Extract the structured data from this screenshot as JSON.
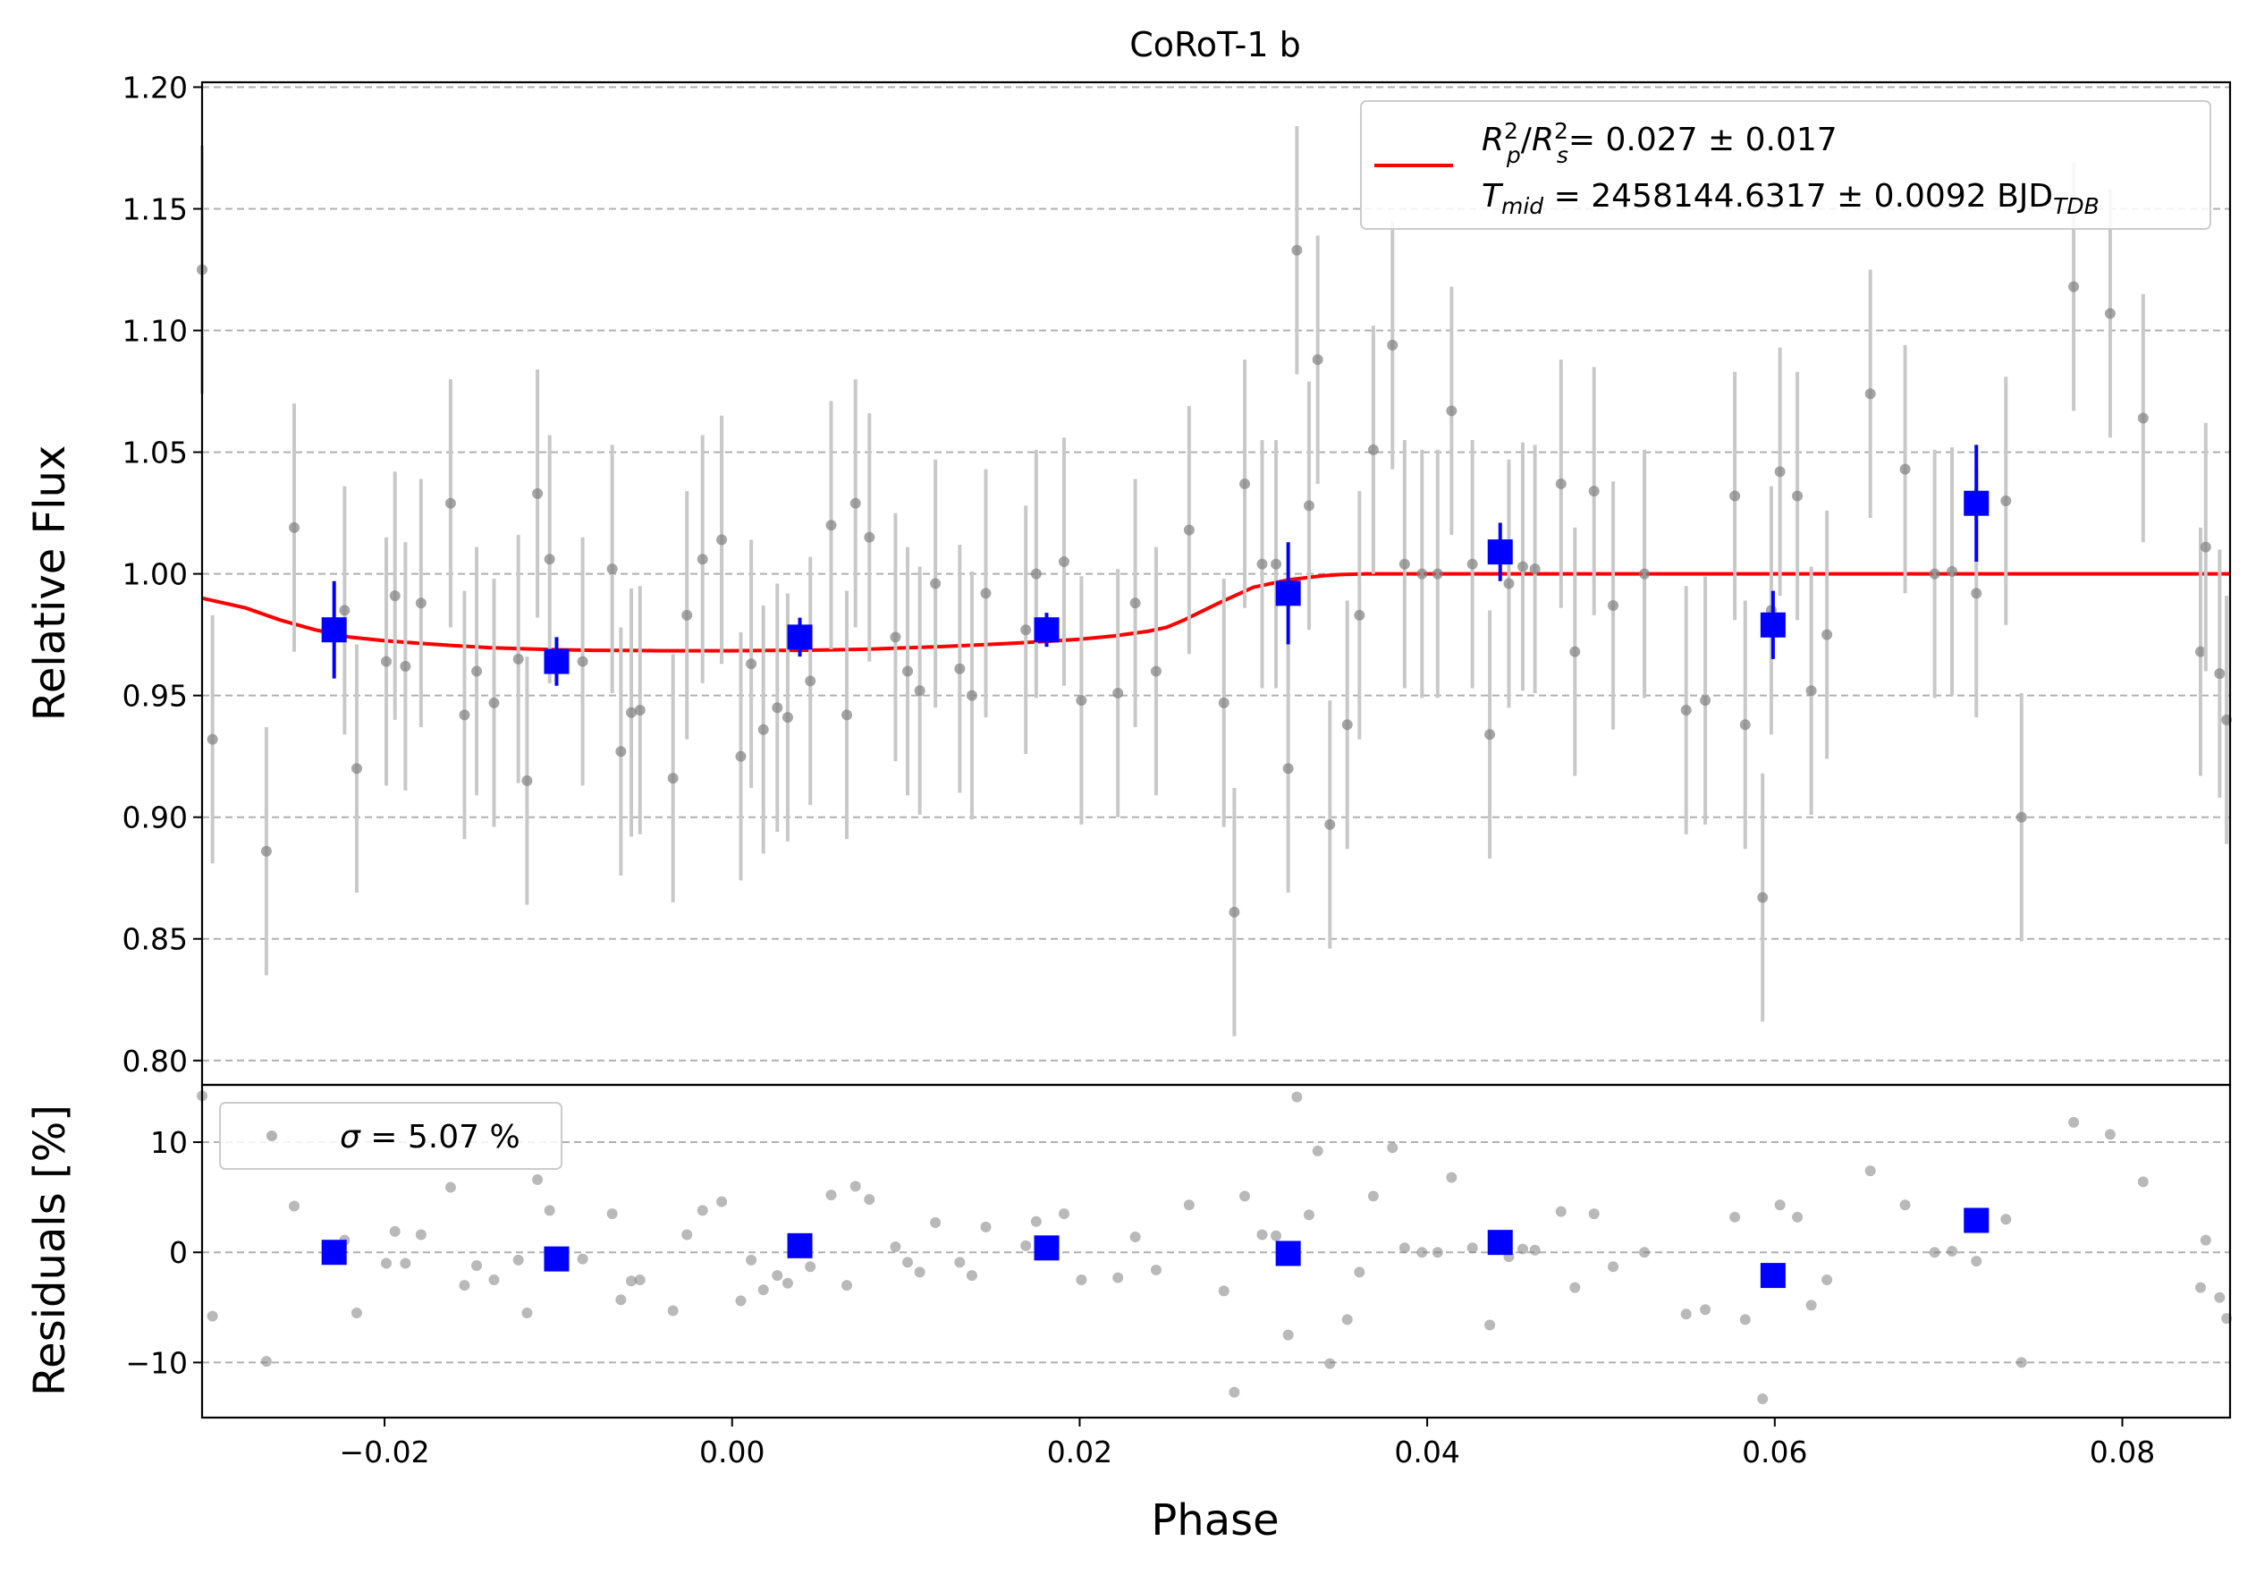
{
  "chart_data": {
    "type": "scatter",
    "title": "CoRoT-1 b",
    "xlabel": "Phase",
    "xlim": [
      -0.0305,
      0.0862
    ],
    "x_ticks": [
      -0.02,
      0.0,
      0.02,
      0.04,
      0.06,
      0.08
    ],
    "x_tick_labels": [
      "−0.02",
      "0.00",
      "0.02",
      "0.04",
      "0.06",
      "0.08"
    ],
    "colors": {
      "raw": "#808080",
      "raw_err": "#c8c8c8",
      "binned": "#0000ff",
      "model": "#ff0000",
      "grid": "#b0b0b0"
    },
    "top_panel": {
      "ylabel": "Relative Flux",
      "ylim": [
        0.79,
        1.202
      ],
      "y_ticks": [
        0.8,
        0.85,
        0.9,
        0.95,
        1.0,
        1.05,
        1.1,
        1.15,
        1.2
      ],
      "y_tick_labels": [
        "0.80",
        "0.85",
        "0.90",
        "0.95",
        "1.00",
        "1.05",
        "1.10",
        "1.15",
        "1.20"
      ],
      "grid": "horizontal dashed",
      "legend": {
        "placement": "upper right",
        "line1_base": "= 0.027 ± 0.017",
        "line2_base": "= 2458144.6317 ± 0.0092 BJD",
        "line2_sub": "TDB"
      },
      "raw_points": {
        "name": "raw",
        "error": 0.051,
        "x": [
          -0.0305,
          -0.0299,
          -0.0268,
          -0.0252,
          -0.0223,
          -0.0216,
          -0.0199,
          -0.0194,
          -0.0188,
          -0.0179,
          -0.0162,
          -0.0154,
          -0.0147,
          -0.0137,
          -0.0123,
          -0.0118,
          -0.0112,
          -0.0105,
          -0.0086,
          -0.0069,
          -0.0064,
          -0.0058,
          -0.0053,
          -0.0034,
          -0.0026,
          -0.0017,
          -0.0006,
          0.0005,
          0.0011,
          0.0018,
          0.0026,
          0.0032,
          0.0045,
          0.0057,
          0.0066,
          0.0071,
          0.0079,
          0.0094,
          0.0101,
          0.0108,
          0.0117,
          0.0131,
          0.0138,
          0.0146,
          0.0169,
          0.0175,
          0.0191,
          0.0201,
          0.0222,
          0.0232,
          0.0244,
          0.0263,
          0.0283,
          0.0289,
          0.0295,
          0.0305,
          0.0313,
          0.032,
          0.0325,
          0.0332,
          0.0337,
          0.0344,
          0.0354,
          0.0361,
          0.0369,
          0.038,
          0.0387,
          0.0397,
          0.0406,
          0.0414,
          0.0426,
          0.0436,
          0.0447,
          0.0455,
          0.0462,
          0.0477,
          0.0485,
          0.0496,
          0.0507,
          0.0525,
          0.0549,
          0.056,
          0.0577,
          0.0583,
          0.0593,
          0.0598,
          0.0603,
          0.0613,
          0.0621,
          0.063,
          0.0655,
          0.0675,
          0.0692,
          0.0702,
          0.0716,
          0.0733,
          0.0742,
          0.0772,
          0.0793,
          0.0812,
          0.0845,
          0.0848,
          0.0856,
          0.086
        ],
        "y": [
          1.125,
          0.932,
          0.886,
          1.019,
          0.985,
          0.92,
          0.964,
          0.991,
          0.962,
          0.988,
          1.029,
          0.942,
          0.96,
          0.947,
          0.965,
          0.915,
          1.033,
          1.006,
          0.964,
          1.002,
          0.927,
          0.943,
          0.944,
          0.916,
          0.983,
          1.006,
          1.014,
          0.925,
          0.963,
          0.936,
          0.945,
          0.941,
          0.956,
          1.02,
          0.942,
          1.029,
          1.015,
          0.974,
          0.96,
          0.952,
          0.996,
          0.961,
          0.95,
          0.992,
          0.977,
          1.0,
          1.005,
          0.948,
          0.951,
          0.988,
          0.96,
          1.018,
          0.947,
          0.861,
          1.037,
          1.004,
          1.004,
          0.92,
          1.133,
          1.028,
          1.088,
          0.897,
          0.938,
          0.983,
          1.051,
          1.094,
          1.004,
          1.0,
          1.0,
          1.067,
          1.004,
          0.934,
          0.996,
          1.003,
          1.002,
          1.037,
          0.968,
          1.034,
          0.987,
          1.0,
          0.944,
          0.948,
          1.032,
          0.938,
          0.867,
          0.985,
          1.042,
          1.032,
          0.952,
          0.975,
          1.074,
          1.043,
          1.0,
          1.001,
          0.992,
          1.03,
          0.9,
          1.118,
          1.107,
          1.064,
          0.968,
          1.011,
          0.959,
          0.94
        ]
      },
      "binned_points": {
        "name": "binned",
        "x": [
          -0.0229,
          -0.0101,
          0.0039,
          0.0181,
          0.032,
          0.0442,
          0.0599,
          0.0716
        ],
        "y": [
          0.977,
          0.964,
          0.974,
          0.977,
          0.992,
          1.009,
          0.979,
          1.029
        ],
        "error": [
          0.02,
          0.01,
          0.008,
          0.007,
          0.021,
          0.012,
          0.014,
          0.024
        ]
      },
      "model": {
        "name": "transit model",
        "x": [
          -0.0305,
          -0.028,
          -0.026,
          -0.024,
          -0.022,
          -0.02,
          -0.018,
          -0.016,
          -0.014,
          -0.012,
          -0.01,
          -0.008,
          -0.006,
          -0.004,
          -0.002,
          0.0,
          0.002,
          0.004,
          0.006,
          0.008,
          0.01,
          0.012,
          0.014,
          0.016,
          0.018,
          0.02,
          0.022,
          0.024,
          0.025,
          0.026,
          0.028,
          0.03,
          0.032,
          0.034,
          0.035,
          0.036,
          0.0365,
          0.037,
          0.04,
          0.05,
          0.06,
          0.07,
          0.08,
          0.0862
        ],
        "y": [
          0.99,
          0.986,
          0.981,
          0.977,
          0.974,
          0.9725,
          0.9715,
          0.9705,
          0.9697,
          0.9692,
          0.9688,
          0.9686,
          0.9685,
          0.9684,
          0.9684,
          0.9684,
          0.9685,
          0.9686,
          0.9688,
          0.9691,
          0.9696,
          0.9701,
          0.9707,
          0.9714,
          0.9722,
          0.9731,
          0.9745,
          0.9765,
          0.978,
          0.981,
          0.988,
          0.9945,
          0.9975,
          0.9992,
          0.9997,
          0.9999,
          1.0,
          1.0,
          1.0,
          1.0,
          1.0,
          1.0,
          1.0,
          1.0
        ]
      }
    },
    "bottom_panel": {
      "ylabel": "Residuals [%]",
      "ylim": [
        -15,
        15.2
      ],
      "y_ticks": [
        -10,
        0,
        10
      ],
      "y_tick_labels": [
        "−10",
        "0",
        "10"
      ],
      "grid": "horizontal dashed",
      "legend": {
        "placement": "upper left",
        "label_base": "= 5.07 %"
      },
      "raw_residuals_y": [
        14.2,
        -5.8,
        -9.9,
        4.2,
        1.1,
        -5.5,
        -1.0,
        1.9,
        -1.0,
        1.6,
        5.9,
        -3.0,
        -1.2,
        -2.5,
        -0.7,
        -5.5,
        6.6,
        3.8,
        -0.6,
        3.5,
        -4.3,
        -2.6,
        -2.5,
        -5.3,
        1.6,
        3.8,
        4.6,
        -4.4,
        -0.7,
        -3.4,
        -2.1,
        -2.8,
        -1.3,
        5.2,
        -3.0,
        6.0,
        4.8,
        0.5,
        -0.9,
        -1.8,
        2.7,
        -0.9,
        -2.1,
        2.3,
        0.6,
        2.8,
        3.5,
        -2.5,
        -2.3,
        1.4,
        -1.6,
        4.3,
        -3.5,
        -12.7,
        5.1,
        1.6,
        1.5,
        -7.5,
        14.1,
        3.4,
        9.2,
        -10.1,
        -6.1,
        -1.8,
        5.1,
        9.5,
        0.4,
        0.0,
        0.0,
        6.8,
        0.4,
        -6.6,
        -0.4,
        0.3,
        0.2,
        3.7,
        -3.2,
        3.5,
        -1.3,
        0.0,
        -5.6,
        -5.2,
        3.2,
        -6.1,
        -13.3,
        -1.5,
        4.3,
        3.2,
        -4.8,
        -2.5,
        7.4,
        4.3,
        0.0,
        0.1,
        -0.8,
        3.0,
        -10.0,
        11.8,
        10.7,
        6.4,
        -3.2,
        1.1,
        -4.1,
        -6.0
      ],
      "binned_residuals_y": [
        0.0,
        -0.6,
        0.6,
        0.4,
        -0.1,
        0.9,
        -2.1,
        2.9
      ]
    }
  }
}
